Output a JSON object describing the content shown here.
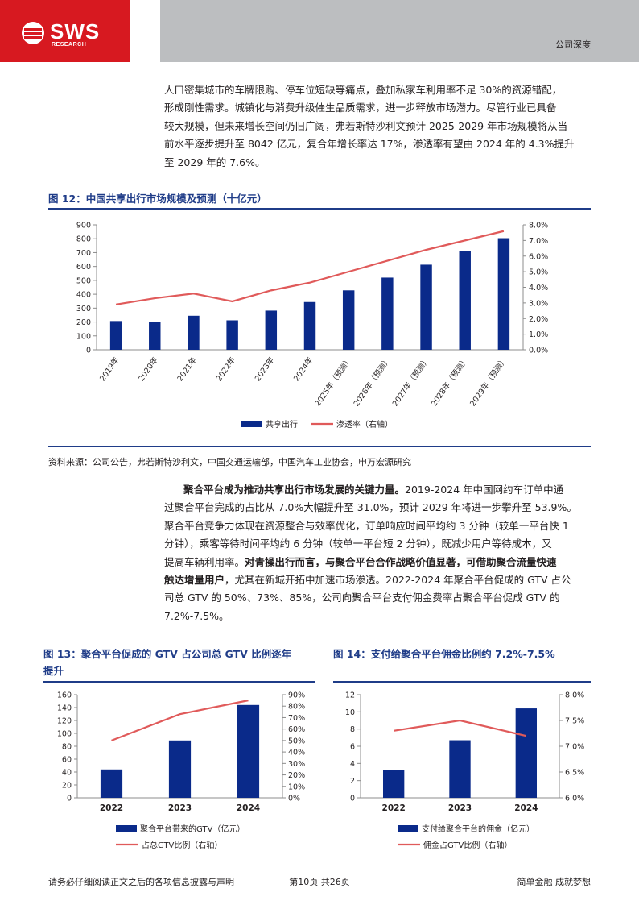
{
  "header": {
    "logo_text": "SWS",
    "logo_sub": "RESEARCH",
    "tag": "公司深度"
  },
  "intro": {
    "lines": [
      "人口密集城市的车牌限购、停车位短缺等痛点，叠加私家车利用率不足 30%的资源错配，",
      "形成刚性需求。城镇化与消费升级催生品质需求，进一步释放市场潜力。尽管行业已具备",
      "较大规模，但未来增长空间仍旧广阔，弗若斯特沙利文预计 2025-2029 年市场规模将从当",
      "前水平逐步提升至 8042 亿元，复合年增长率达 17%，渗透率有望由 2024 年的 4.3%提升",
      "至 2029 年的 7.6%。"
    ]
  },
  "fig12": {
    "title": "图 12：中国共享出行市场规模及预测（十亿元）",
    "source": "资料来源：公司公告，弗若斯特沙利文，中国交通运输部，中国汽车工业协会，申万宏源研究"
  },
  "para2": {
    "l1_bold": "聚合平台成为推动共享出行市场发展的关键力量。",
    "l1_rest": "2019-2024  年中国网约车订单中通",
    "l2": "过聚合平台完成的占比从 7.0%大幅提升至 31.0%，预计 2029 年将进一步攀升至 53.9%。",
    "l3": "聚合平台竞争力体现在资源整合与效率优化，订单响应时间平均约 3 分钟（较单一平台快 1",
    "l4": "分钟），乘客等待时间平均约 6 分钟（较单一平台短 2 分钟），既减少用户等待成本，又",
    "l5_pre": "提高车辆利用率。",
    "l5_bold": "对青操出行而言，与聚合平台合作战略价值显著，可借助聚合流量快速",
    "l6_bold": "触达增量用户",
    "l6_rest": "，尤其在新城开拓中加速市场渗透。2022-2024 年聚合平台促成的 GTV 占公",
    "l7": "司总 GTV 的 50%、73%、85%，公司向聚合平台支付佣金费率占聚合平台促成 GTV 的",
    "l8": "7.2%-7.5%。"
  },
  "fig13": {
    "title_l1": "图 13：聚合平台促成的 GTV 占公司总 GTV 比例逐年",
    "title_l2": "提升"
  },
  "fig14": {
    "title": "图 14：支付给聚合平台佣金比例约 7.2%-7.5%"
  },
  "chart_data": [
    {
      "type": "bar",
      "categories": [
        "2019年",
        "2020年",
        "2021年",
        "2022年",
        "2023年",
        "2024年",
        "2025年（预测）",
        "2026年（预测）",
        "2027年（预测）",
        "2028年（预测）",
        "2029年（预测）"
      ],
      "series": [
        {
          "name": "共享出行",
          "type": "bar",
          "axis": "left",
          "color": "#0a2a8a",
          "values": [
            207,
            203,
            245,
            212,
            282,
            344,
            428,
            520,
            613,
            712,
            804
          ]
        },
        {
          "name": "渗透率（右轴）",
          "type": "line",
          "axis": "right",
          "color": "#e05a5a",
          "values": [
            2.9,
            3.3,
            3.6,
            3.1,
            3.8,
            4.3,
            5.0,
            5.7,
            6.4,
            7.0,
            7.6
          ]
        }
      ],
      "ylim": [
        0,
        900
      ],
      "yticks": [
        "0",
        "100",
        "200",
        "300",
        "400",
        "500",
        "600",
        "700",
        "800",
        "900"
      ],
      "y2lim": [
        0,
        8
      ],
      "y2ticks": [
        "0.0%",
        "1.0%",
        "2.0%",
        "3.0%",
        "4.0%",
        "5.0%",
        "6.0%",
        "7.0%",
        "8.0%"
      ],
      "legend": "bottom",
      "grid": false
    },
    {
      "type": "bar",
      "categories": [
        "2022",
        "2023",
        "2024"
      ],
      "series": [
        {
          "name": "聚合平台带来的GTV（亿元）",
          "type": "bar",
          "axis": "left",
          "color": "#0a2a8a",
          "values": [
            44,
            89,
            144
          ]
        },
        {
          "name": "占总GTV比例（右轴）",
          "type": "line",
          "axis": "right",
          "color": "#e05a5a",
          "values": [
            50,
            73,
            85
          ]
        }
      ],
      "ylim": [
        0,
        160
      ],
      "yticks": [
        "0",
        "20",
        "40",
        "60",
        "80",
        "100",
        "120",
        "140",
        "160"
      ],
      "y2lim": [
        0,
        90
      ],
      "y2ticks": [
        "0%",
        "10%",
        "20%",
        "30%",
        "40%",
        "50%",
        "60%",
        "70%",
        "80%",
        "90%"
      ],
      "legend": "bottom",
      "grid": false
    },
    {
      "type": "bar",
      "categories": [
        "2022",
        "2023",
        "2024"
      ],
      "series": [
        {
          "name": "支付给聚合平台的佣金（亿元）",
          "type": "bar",
          "axis": "left",
          "color": "#0a2a8a",
          "values": [
            3.2,
            6.7,
            10.4
          ]
        },
        {
          "name": "佣金占GTV比例（右轴）",
          "type": "line",
          "axis": "right",
          "color": "#e05a5a",
          "values": [
            7.3,
            7.5,
            7.2
          ]
        }
      ],
      "ylim": [
        0,
        12
      ],
      "yticks": [
        "0",
        "2",
        "4",
        "6",
        "8",
        "10",
        "12"
      ],
      "y2lim": [
        6.0,
        8.0
      ],
      "y2ticks": [
        "6.0%",
        "6.5%",
        "7.0%",
        "7.5%",
        "8.0%"
      ],
      "legend": "bottom",
      "grid": false
    }
  ],
  "footer": {
    "left": "请务必仔细阅读正文之后的各项信息披露与声明",
    "center": "第10页 共26页",
    "right": "简单金融 成就梦想"
  }
}
